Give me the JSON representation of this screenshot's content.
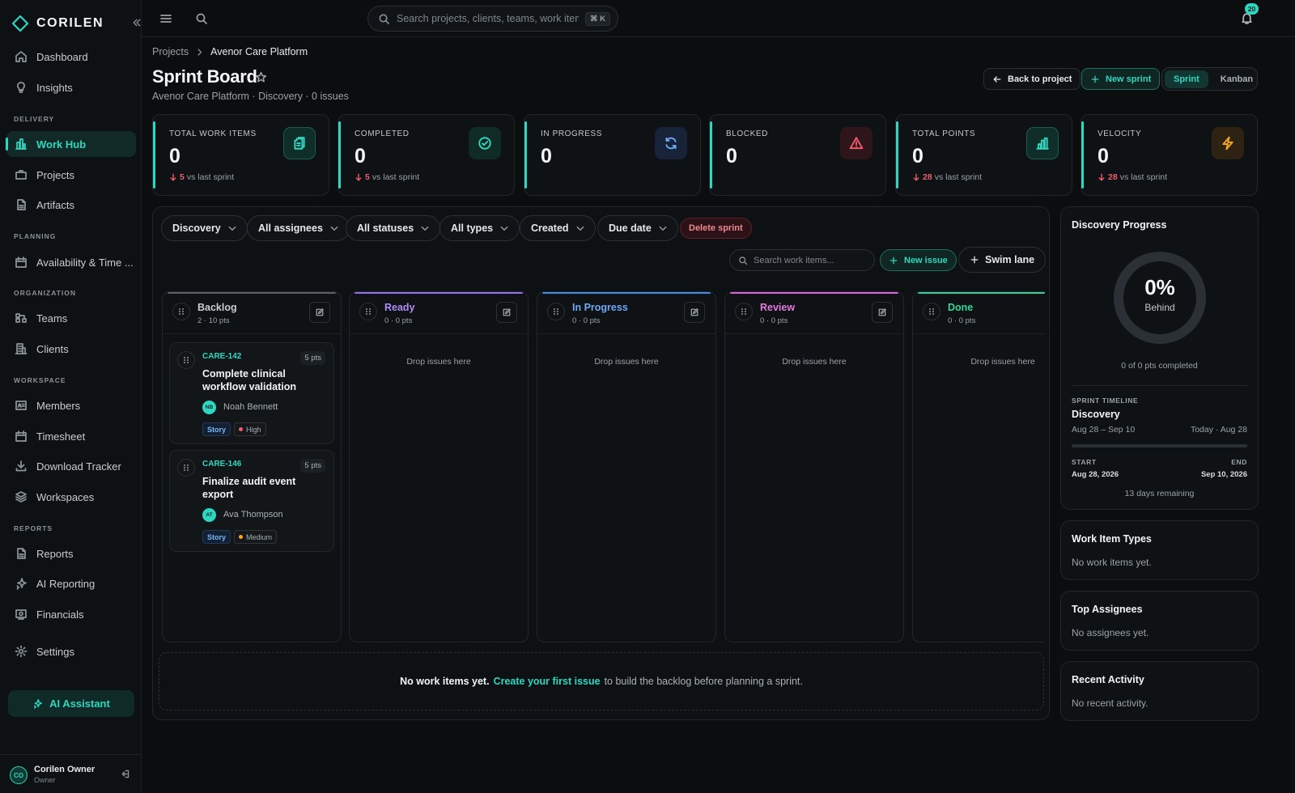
{
  "brand": {
    "name": "CORILEN",
    "accent": "#2fd7c1"
  },
  "sidebar": {
    "items": [
      {
        "label": "Dashboard",
        "icon": "home-icon"
      },
      {
        "label": "Insights",
        "icon": "lightbulb-icon"
      },
      {
        "label": "Work Hub",
        "icon": "chart-building-icon",
        "active": true
      },
      {
        "label": "Projects",
        "icon": "briefcase-icon"
      },
      {
        "label": "Artifacts",
        "icon": "file-icon"
      },
      {
        "label": "Availability & Time ...",
        "icon": "calendar-icon"
      },
      {
        "label": "Teams",
        "icon": "org-chart-icon"
      },
      {
        "label": "Clients",
        "icon": "building-icon"
      },
      {
        "label": "Members",
        "icon": "id-card-icon"
      },
      {
        "label": "Timesheet",
        "icon": "calendar-icon"
      },
      {
        "label": "Download Tracker",
        "icon": "download-icon"
      },
      {
        "label": "Workspaces",
        "icon": "layers-icon"
      },
      {
        "label": "Reports",
        "icon": "file-icon"
      },
      {
        "label": "AI Reporting",
        "icon": "sparkles-icon"
      },
      {
        "label": "Financials",
        "icon": "dollar-icon"
      },
      {
        "label": "Settings",
        "icon": "gear-icon"
      }
    ],
    "sections": [
      "DELIVERY",
      "PLANNING",
      "ORGANIZATION",
      "WORKSPACE",
      "REPORTS"
    ],
    "ai_label": "AI Assistant",
    "user": {
      "initials": "CO",
      "name": "Corilen Owner",
      "role": "Owner"
    }
  },
  "topbar": {
    "search_placeholder": "Search projects, clients, teams, work items",
    "shortcut": "⌘ K",
    "notification_count": "20"
  },
  "header": {
    "breadcrumb": [
      "Projects",
      "Avenor Care Platform"
    ],
    "title": "Sprint Board",
    "subtitle": "Avenor Care Platform · Discovery · 0 issues",
    "back_label": "Back to project",
    "new_sprint_label": "New sprint",
    "views": [
      "Sprint",
      "Kanban"
    ],
    "active_view": "Sprint"
  },
  "stats": [
    {
      "label": "TOTAL WORK ITEMS",
      "value": "0",
      "delta": "5",
      "delta_suffix": "vs last sprint",
      "icon": "clipboard-icon",
      "color": "#2fd7c1"
    },
    {
      "label": "COMPLETED",
      "value": "0",
      "delta": "5",
      "delta_suffix": "vs last sprint",
      "icon": "check-circle-icon",
      "color": "#2fd7c1"
    },
    {
      "label": "IN PROGRESS",
      "value": "0",
      "delta": "",
      "delta_suffix": "",
      "icon": "refresh-icon",
      "color": "#6fa8f5"
    },
    {
      "label": "BLOCKED",
      "value": "0",
      "delta": "",
      "delta_suffix": "",
      "icon": "warning-icon",
      "color": "#f25c6a"
    },
    {
      "label": "TOTAL POINTS",
      "value": "0",
      "delta": "28",
      "delta_suffix": "vs last sprint",
      "icon": "bar-chart-icon",
      "color": "#2fd7c1"
    },
    {
      "label": "VELOCITY",
      "value": "0",
      "delta": "28",
      "delta_suffix": "vs last sprint",
      "icon": "bolt-icon",
      "color": "#f5a623"
    }
  ],
  "filters": {
    "chips": [
      "Discovery",
      "All assignees",
      "All statuses",
      "All types",
      "Created",
      "Due date"
    ],
    "delete_label": "Delete sprint",
    "search_placeholder": "Search work items...",
    "new_issue_label": "New issue",
    "swim_lane_label": "Swim lane"
  },
  "columns": [
    {
      "title": "Backlog",
      "meta": "2 · 10 pts",
      "color": "#5b6166",
      "title_color": "#c9cdd1"
    },
    {
      "title": "Ready",
      "meta": "0 · 0 pts",
      "color": "#9b6cf2",
      "title_color": "#b08cf7",
      "drop": "Drop issues here"
    },
    {
      "title": "In Progress",
      "meta": "0 · 0 pts",
      "color": "#3f8df0",
      "title_color": "#6fa8f5",
      "drop": "Drop issues here"
    },
    {
      "title": "Review",
      "meta": "0 · 0 pts",
      "color": "#e25de0",
      "title_color": "#e27ae0",
      "drop": "Drop issues here"
    },
    {
      "title": "Done",
      "meta": "0 · 0 pts",
      "color": "#2ed396",
      "title_color": "#36d69b",
      "drop": "Drop issues here"
    }
  ],
  "cards": [
    {
      "key": "CARE-142",
      "points": "5 pts",
      "title": "Complete clinical workflow validation",
      "initials": "NB",
      "assignee": "Noah Bennett",
      "type": "Story",
      "priority": "High",
      "priority_color": "#f25c6a"
    },
    {
      "key": "CARE-146",
      "points": "5 pts",
      "title": "Finalize audit event export",
      "initials": "AT",
      "assignee": "Ava Thompson",
      "type": "Story",
      "priority": "Medium",
      "priority_color": "#f5a623"
    }
  ],
  "empty_state": {
    "strong": "No work items yet.",
    "link": "Create your first issue",
    "rest": "to build the backlog before planning a sprint."
  },
  "progress": {
    "title": "Discovery Progress",
    "percent": "0%",
    "percent_fraction": 0,
    "status": "Behind",
    "caption": "0 of 0 pts completed",
    "timeline_label": "SPRINT TIMELINE",
    "sprint": "Discovery",
    "range": "Aug 28 – Sep 10",
    "today": "Today · Aug 28",
    "timeline_fraction": 0,
    "start_label": "START",
    "start": "Aug 28, 2026",
    "end_label": "END",
    "end": "Sep 10, 2026",
    "remaining": "13 days remaining"
  },
  "panels": [
    {
      "title": "Work Item Types",
      "empty": "No work items yet."
    },
    {
      "title": "Top Assignees",
      "empty": "No assignees yet."
    },
    {
      "title": "Recent Activity",
      "empty": "No recent activity."
    }
  ]
}
